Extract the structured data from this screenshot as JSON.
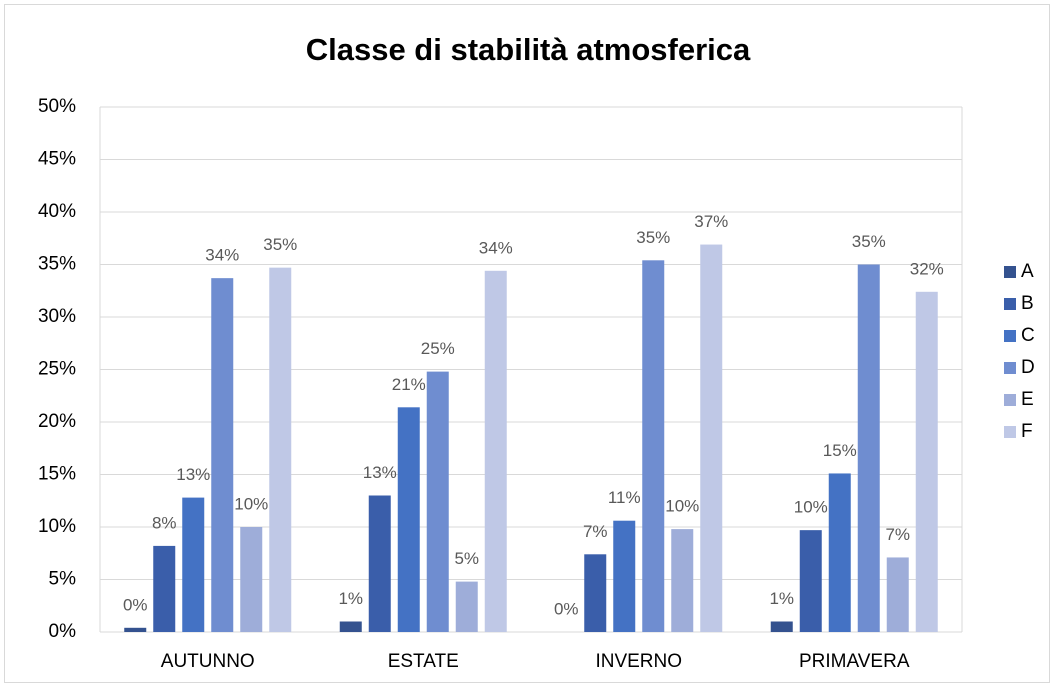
{
  "chart_data": {
    "type": "bar",
    "title": "Classe di stabilità atmosferica",
    "categories": [
      "AUTUNNO",
      "ESTATE",
      "INVERNO",
      "PRIMAVERA"
    ],
    "series": [
      {
        "name": "A",
        "color": "#34528f",
        "values": [
          0.4,
          1.0,
          0,
          1.0
        ],
        "value_labels": [
          "0%",
          "1%",
          "0%",
          "1%"
        ]
      },
      {
        "name": "B",
        "color": "#3a5eaa",
        "values": [
          8.2,
          13.0,
          7.4,
          9.7
        ],
        "value_labels": [
          "8%",
          "13%",
          "7%",
          "10%"
        ]
      },
      {
        "name": "C",
        "color": "#4472c4",
        "values": [
          12.8,
          21.4,
          10.6,
          15.1
        ],
        "value_labels": [
          "13%",
          "21%",
          "11%",
          "15%"
        ]
      },
      {
        "name": "D",
        "color": "#6f8dd0",
        "values": [
          33.7,
          24.8,
          35.4,
          35.0
        ],
        "value_labels": [
          "34%",
          "25%",
          "35%",
          "35%"
        ]
      },
      {
        "name": "E",
        "color": "#9eadd9",
        "values": [
          10.0,
          4.8,
          9.8,
          7.1
        ],
        "value_labels": [
          "10%",
          "5%",
          "10%",
          "7%"
        ]
      },
      {
        "name": "F",
        "color": "#bfc8e6",
        "values": [
          34.7,
          34.4,
          36.9,
          32.4
        ],
        "value_labels": [
          "35%",
          "34%",
          "37%",
          "32%"
        ]
      }
    ],
    "ylim": [
      0,
      50
    ],
    "yticks": [
      {
        "value": 0,
        "label": "0%"
      },
      {
        "value": 5,
        "label": "5%"
      },
      {
        "value": 10,
        "label": "10%"
      },
      {
        "value": 15,
        "label": "15%"
      },
      {
        "value": 20,
        "label": "20%"
      },
      {
        "value": 25,
        "label": "25%"
      },
      {
        "value": 30,
        "label": "30%"
      },
      {
        "value": 35,
        "label": "35%"
      },
      {
        "value": 40,
        "label": "40%"
      },
      {
        "value": 45,
        "label": "45%"
      },
      {
        "value": 50,
        "label": "50%"
      }
    ],
    "grid": true,
    "legend": "right"
  }
}
